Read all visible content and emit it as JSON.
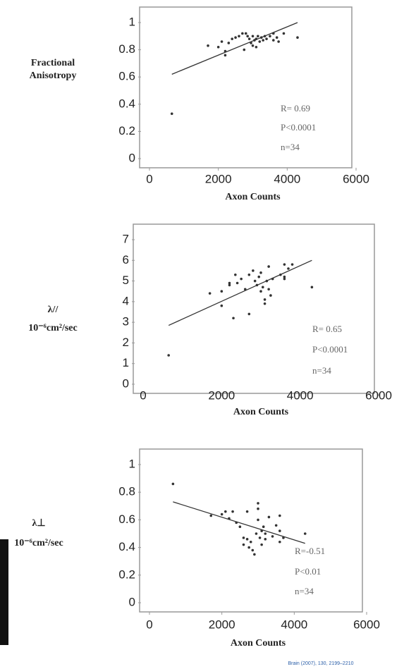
{
  "chart_data": [
    {
      "type": "scatter",
      "ylabel": [
        "Fractional",
        "Anisotropy"
      ],
      "xlabel": "Axon Counts",
      "annotations": [
        "R= 0.69",
        "P<0.0001",
        "n=34"
      ],
      "color": "#333333",
      "xlim": [
        0,
        6000
      ],
      "xticks": [
        0,
        2000,
        4000,
        6000
      ],
      "ylim": [
        0,
        1
      ],
      "yticks": [
        0,
        0.2,
        0.4,
        0.6,
        0.8,
        1
      ],
      "x": [
        650,
        1700,
        2000,
        2100,
        2200,
        2300,
        2400,
        2500,
        2600,
        2700,
        2750,
        2800,
        2850,
        2900,
        2950,
        3000,
        3000,
        3050,
        3100,
        3100,
        3150,
        3200,
        3250,
        3300,
        3350,
        3400,
        3500,
        3600,
        3600,
        3700,
        3750,
        3900,
        4300,
        2200
      ],
      "values": [
        0.33,
        0.83,
        0.82,
        0.86,
        0.79,
        0.85,
        0.88,
        0.89,
        0.9,
        0.92,
        0.8,
        0.92,
        0.9,
        0.88,
        0.85,
        0.83,
        0.9,
        0.87,
        0.82,
        0.88,
        0.9,
        0.86,
        0.89,
        0.87,
        0.9,
        0.88,
        0.9,
        0.87,
        0.92,
        0.89,
        0.86,
        0.92,
        0.89,
        0.76
      ],
      "trendline": {
        "x": [
          650,
          4300
        ],
        "y": [
          0.62,
          1.0
        ]
      }
    },
    {
      "type": "scatter",
      "ylabel": [
        "λ//",
        "10⁻⁶cm²/sec"
      ],
      "xlabel": "Axon Counts",
      "annotations": [
        "R= 0.65",
        "P<0.0001",
        "n=34"
      ],
      "color": "#333333",
      "xlim": [
        0,
        6000
      ],
      "xticks": [
        0,
        2000,
        4000,
        6000
      ],
      "ylim": [
        0,
        7
      ],
      "yticks": [
        0,
        1,
        2,
        3,
        4,
        5,
        6,
        7
      ],
      "x": [
        650,
        1700,
        2000,
        2000,
        2200,
        2300,
        2350,
        2400,
        2500,
        2600,
        2700,
        2700,
        2800,
        2850,
        2900,
        2950,
        3000,
        3000,
        3050,
        3100,
        3100,
        3150,
        3200,
        3200,
        3250,
        3300,
        3500,
        3600,
        3600,
        3600,
        3700,
        3800,
        4300,
        2200
      ],
      "values": [
        1.4,
        4.4,
        3.8,
        4.5,
        4.8,
        3.2,
        5.3,
        4.9,
        5.1,
        4.6,
        3.4,
        5.3,
        5.5,
        5.0,
        4.8,
        5.2,
        4.5,
        5.4,
        4.7,
        4.1,
        3.9,
        5.0,
        4.6,
        5.7,
        4.3,
        5.1,
        5.3,
        5.1,
        5.8,
        5.2,
        5.6,
        5.8,
        4.7,
        4.9
      ],
      "trendline": {
        "x": [
          650,
          4300
        ],
        "y": [
          2.85,
          6.0
        ]
      }
    },
    {
      "type": "scatter",
      "ylabel": [
        "λ⊥",
        "10⁻⁶cm²/sec"
      ],
      "xlabel": "Axon Counts",
      "annotations": [
        "R=-0.51",
        "P<0.01",
        "n=34"
      ],
      "color": "#333333",
      "xlim": [
        0,
        6000
      ],
      "xticks": [
        0,
        2000,
        4000,
        6000
      ],
      "ylim": [
        0,
        1
      ],
      "yticks": [
        0,
        0.2,
        0.4,
        0.6,
        0.8,
        1
      ],
      "x": [
        650,
        1700,
        2000,
        2100,
        2200,
        2300,
        2400,
        2500,
        2600,
        2700,
        2700,
        2750,
        2800,
        2850,
        2900,
        2950,
        3000,
        3000,
        3050,
        3100,
        3100,
        3150,
        3200,
        3200,
        3300,
        3400,
        3500,
        3600,
        3600,
        3600,
        3700,
        4300,
        2600,
        3000
      ],
      "values": [
        0.86,
        0.63,
        0.64,
        0.66,
        0.61,
        0.66,
        0.58,
        0.55,
        0.47,
        0.46,
        0.66,
        0.4,
        0.44,
        0.38,
        0.35,
        0.5,
        0.72,
        0.6,
        0.47,
        0.52,
        0.42,
        0.55,
        0.46,
        0.5,
        0.62,
        0.48,
        0.56,
        0.52,
        0.63,
        0.44,
        0.47,
        0.5,
        0.42,
        0.68
      ],
      "trendline": {
        "x": [
          650,
          4300
        ],
        "y": [
          0.73,
          0.43
        ]
      }
    }
  ],
  "citation": "Brain (2007), 130, 2199–2210"
}
